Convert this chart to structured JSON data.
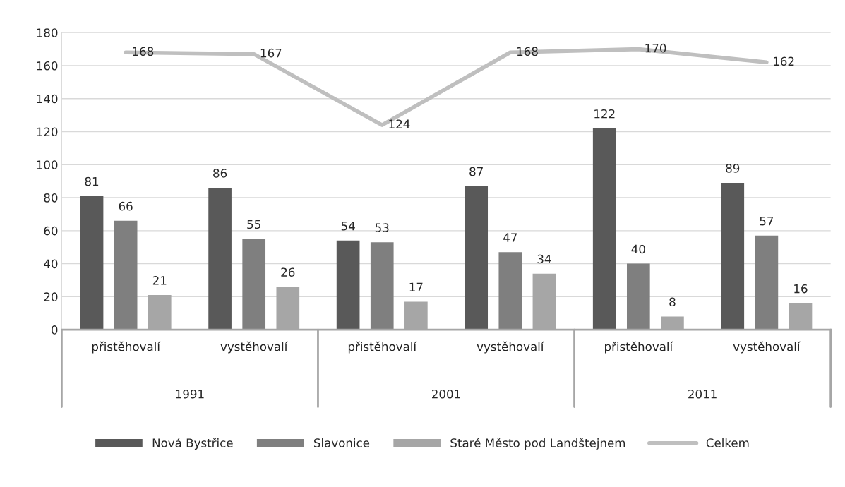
{
  "chart_data": {
    "type": "bar",
    "categories": [
      "přistěhovalí",
      "vystěhovalí",
      "přistěhovalí",
      "vystěhovalí",
      "přistěhovalí",
      "vystěhovalí"
    ],
    "series": [
      {
        "name": "Nová Bystřice",
        "color": "#595959",
        "values": [
          81,
          86,
          54,
          87,
          122,
          89
        ]
      },
      {
        "name": "Slavonice",
        "color": "#7f7f7f",
        "values": [
          66,
          55,
          53,
          47,
          40,
          57
        ]
      },
      {
        "name": "Staré Město pod Landštejnem",
        "color": "#a6a6a6",
        "values": [
          21,
          26,
          17,
          34,
          8,
          16
        ]
      },
      {
        "name": "Celkem",
        "type": "line",
        "color": "#bfbfbf",
        "values": [
          168,
          167,
          124,
          168,
          170,
          162
        ]
      }
    ],
    "annotations": [
      "1991",
      "2001",
      "2011"
    ],
    "ylim": [
      0,
      180
    ],
    "yticks": [
      0,
      20,
      40,
      60,
      80,
      100,
      120,
      140,
      160,
      180
    ],
    "grid": "y",
    "legend": "bottom",
    "data_labels": true,
    "marker": "none",
    "line_style": "solid"
  }
}
